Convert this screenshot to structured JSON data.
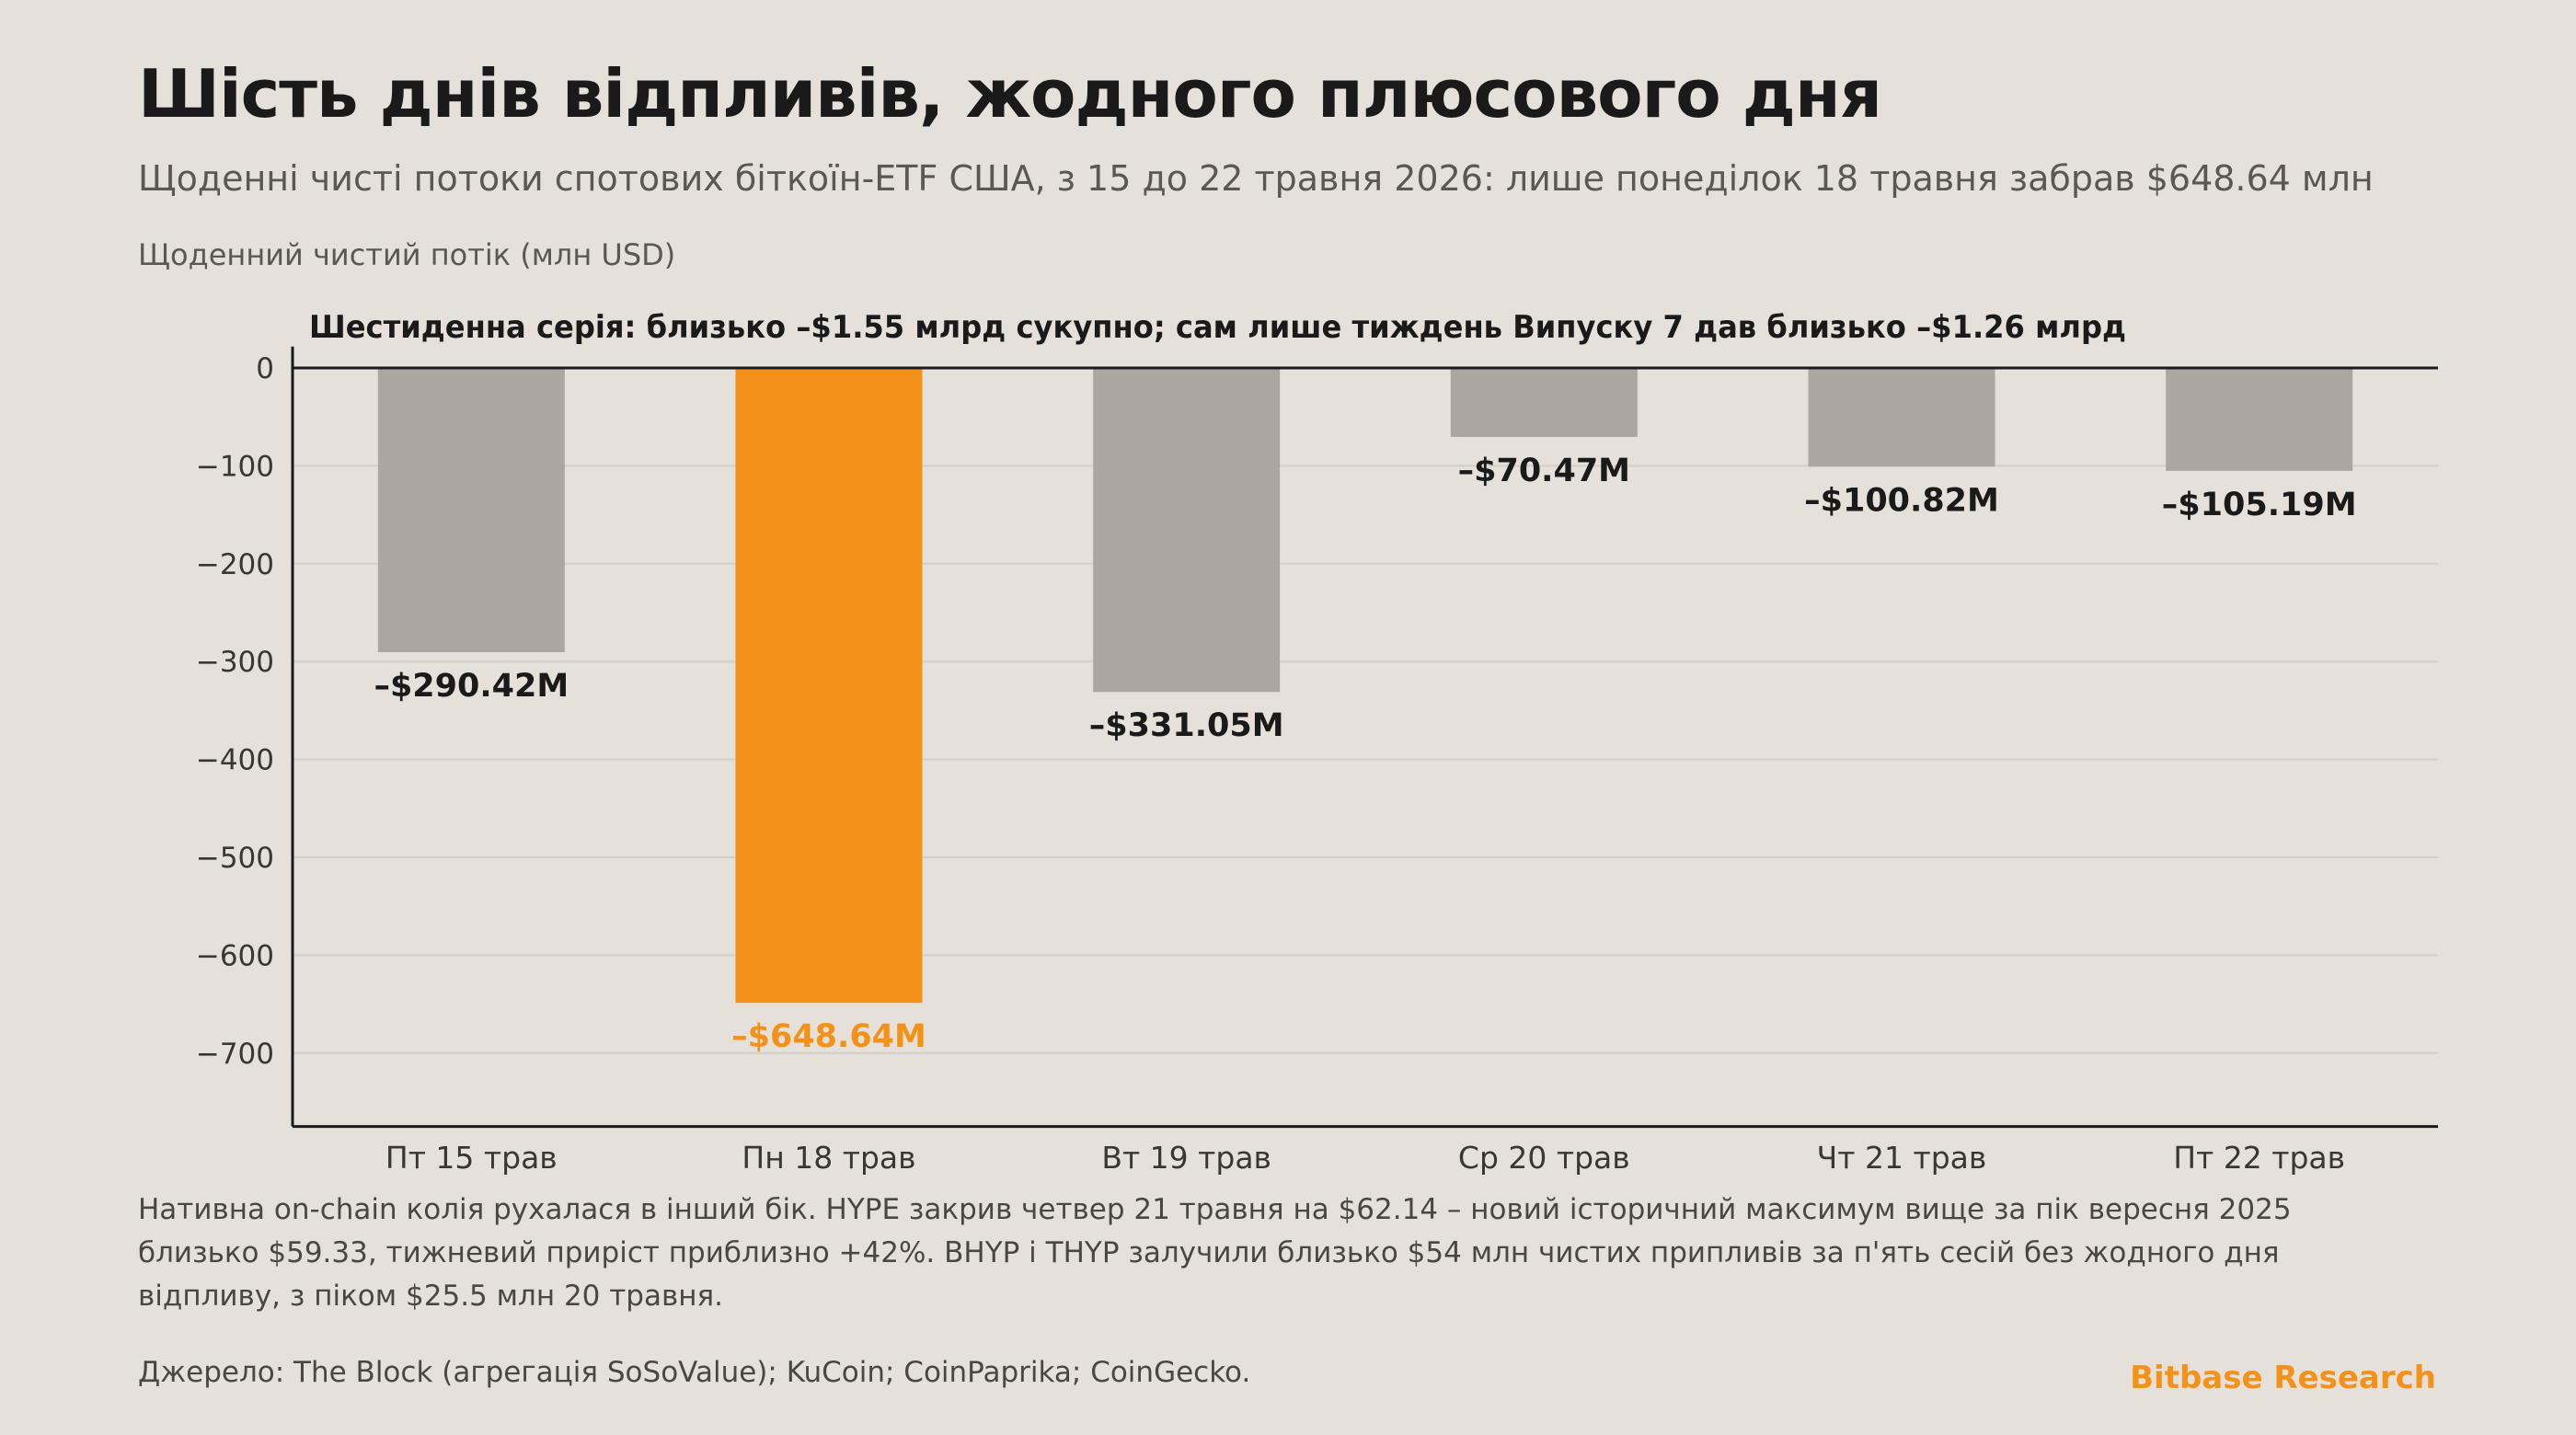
{
  "title": "Шість днів відпливів, жодного плюсового дня",
  "subtitle": "Щоденні чисті потоки спотових біткоїн-ETF США, з 15 до 22 травня 2026: лише понеділок 18 травня забрав $648.64 млн",
  "note": "Нативна on-chain колія рухалася в інший бік. HYPE закрив четвер 21 травня на $62.14 – новий історичний максимум вище за пік вересня 2025 близько $59.33, тижневий приріст приблизно +42%. BHYP і THYP залучили близько $54 млн чистих припливів за п'ять сесій без жодного дня відпливу, з піком $25.5 млн 20 травня.",
  "source": "Джерело: The Block (агрегація SoSoValue); KuCoin; CoinPaprika; CoinGecko.",
  "brand": "Bitbase Research",
  "colors": {
    "background": "#e5e0da",
    "bar_default": "#aba69f",
    "bar_highlight": "#f39119",
    "grid": "#d3cec7",
    "axis": "#1a1a1a",
    "brand": "#f39119"
  },
  "chart_data": {
    "type": "bar",
    "title": "Шестиденна серія: близько –$1.55 млрд сукупно; сам лише тиждень Випуску 7 дав близько –$1.26 млрд",
    "ylabel": "Щоденний чистий потік (млн USD)",
    "xlabel": "",
    "categories": [
      "Пт 15 трав",
      "Пн 18 трав",
      "Вт 19 трав",
      "Ср 20 трав",
      "Чт 21 трав",
      "Пт 22 трав"
    ],
    "values": [
      -290.42,
      -648.64,
      -331.05,
      -70.47,
      -100.82,
      -105.19
    ],
    "data_labels": [
      "–$290.42M",
      "–$648.64M",
      "–$331.05M",
      "–$70.47M",
      "–$100.82M",
      "–$105.19M"
    ],
    "highlight_index": 1,
    "ylim": [
      -775,
      20
    ],
    "yticks": [
      0,
      -100,
      -200,
      -300,
      -400,
      -500,
      -600,
      -700
    ],
    "ytick_labels": [
      "0",
      "−100",
      "−200",
      "−300",
      "−400",
      "−500",
      "−600",
      "−700"
    ],
    "grid": true,
    "legend": "none"
  }
}
